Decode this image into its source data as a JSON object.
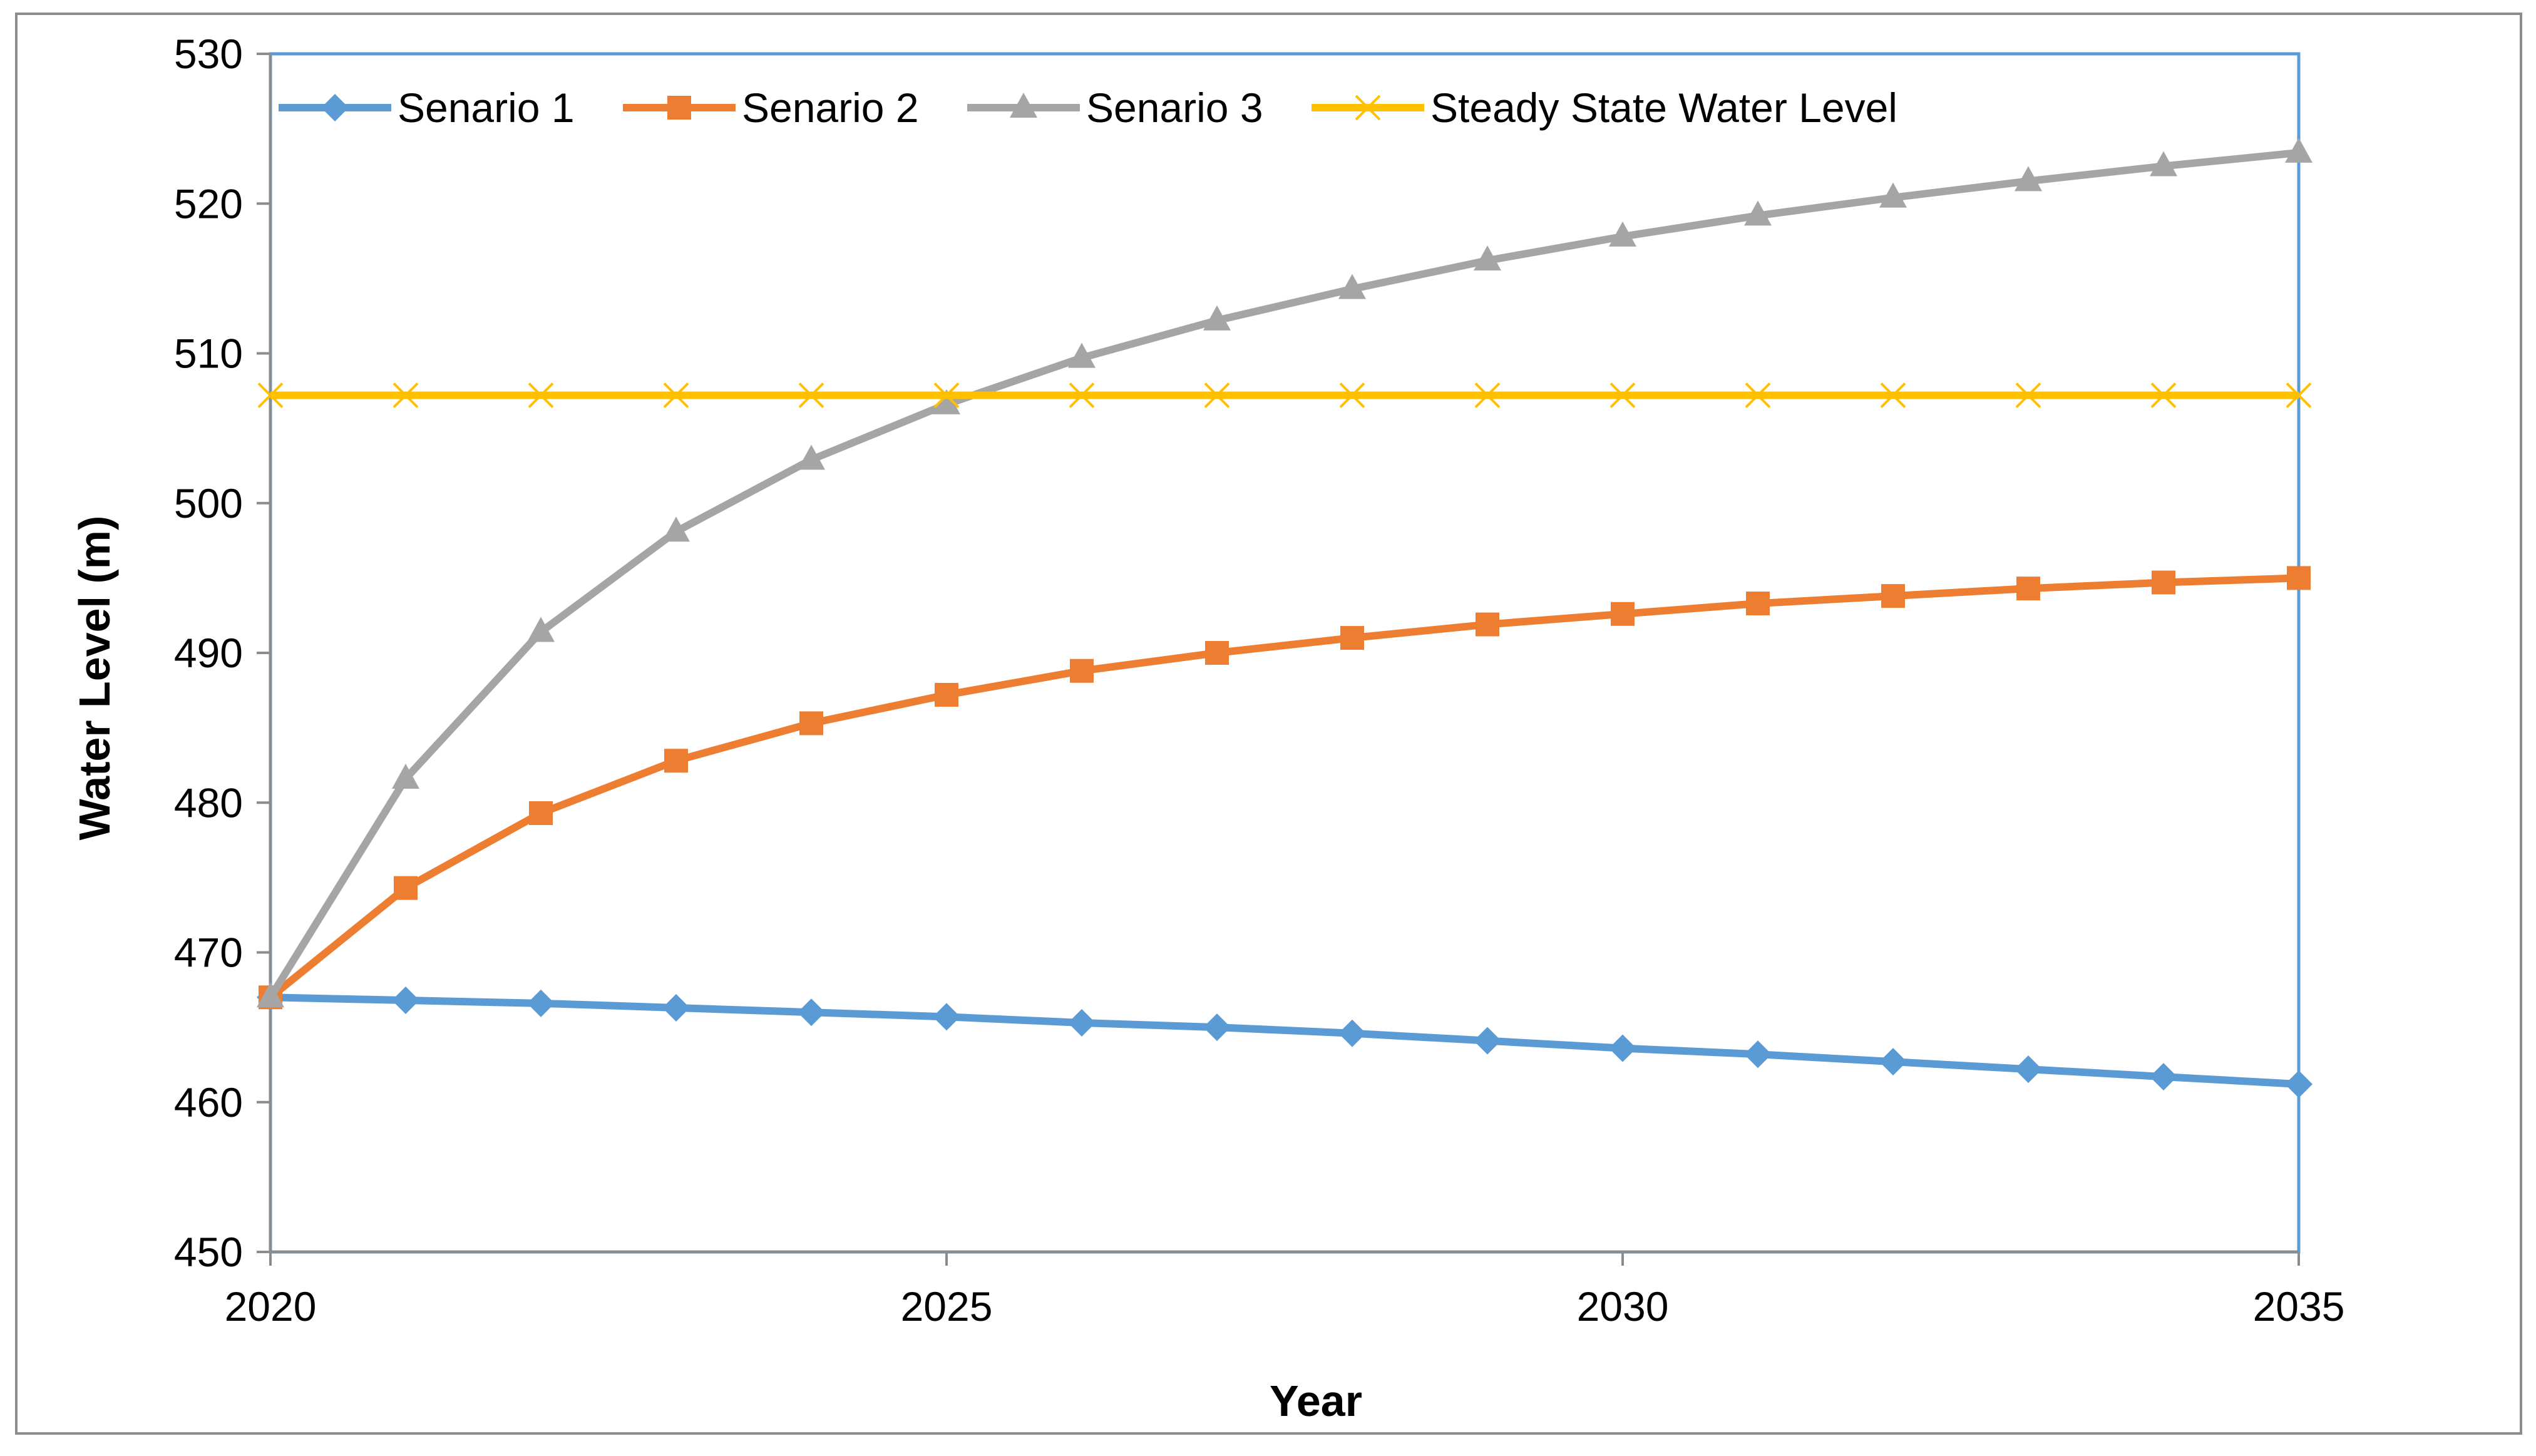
{
  "chart_data": {
    "type": "line",
    "title": "",
    "xlabel": "Year",
    "ylabel": "Water Level (m)",
    "xlim": [
      2020,
      2035
    ],
    "ylim": [
      450,
      530
    ],
    "x_ticks": [
      2020,
      2025,
      2030,
      2035
    ],
    "y_ticks": [
      450,
      460,
      470,
      480,
      490,
      500,
      510,
      520,
      530
    ],
    "grid": false,
    "legend_position": "top-left",
    "x": [
      2020,
      2021,
      2022,
      2023,
      2024,
      2025,
      2026,
      2027,
      2028,
      2029,
      2030,
      2031,
      2032,
      2033,
      2034,
      2035
    ],
    "series": [
      {
        "name": "Senario 1",
        "color": "#5B9BD5",
        "marker": "diamond",
        "values": [
          467.0,
          466.8,
          466.6,
          466.3,
          466.0,
          465.7,
          465.3,
          465.0,
          464.6,
          464.1,
          463.6,
          463.2,
          462.7,
          462.2,
          461.7,
          461.2
        ]
      },
      {
        "name": "Senario 2",
        "color": "#ED7D31",
        "marker": "square",
        "values": [
          467.0,
          474.3,
          479.3,
          482.8,
          485.3,
          487.2,
          488.8,
          490.0,
          491.0,
          491.9,
          492.6,
          493.3,
          493.8,
          494.3,
          494.7,
          495.0
        ]
      },
      {
        "name": "Senario 3",
        "color": "#A5A5A5",
        "marker": "triangle",
        "values": [
          467.0,
          481.6,
          491.4,
          498.1,
          502.9,
          506.6,
          509.7,
          512.2,
          514.3,
          516.2,
          517.8,
          519.2,
          520.4,
          521.5,
          522.5,
          523.4
        ]
      },
      {
        "name": "Steady State Water Level",
        "color": "#FFC000",
        "marker": "x",
        "values": [
          507.2,
          507.2,
          507.2,
          507.2,
          507.2,
          507.2,
          507.2,
          507.2,
          507.2,
          507.2,
          507.2,
          507.2,
          507.2,
          507.2,
          507.2,
          507.2
        ]
      }
    ]
  }
}
